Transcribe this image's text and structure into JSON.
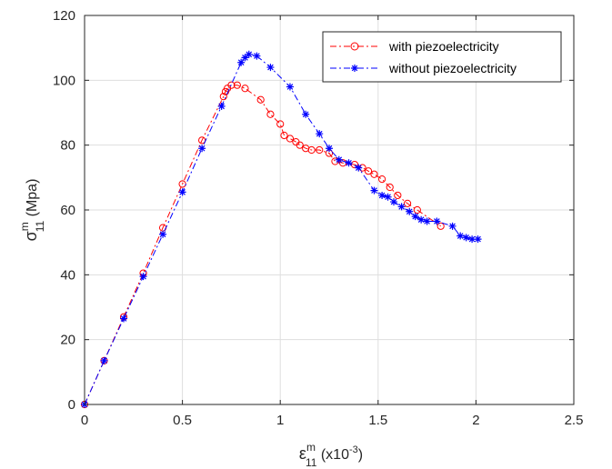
{
  "chart_data": {
    "type": "line",
    "xlabel": {
      "symbol": "ε",
      "sup": "m",
      "sub": "11",
      "unit_prefix": " (x10",
      "unit_exp": "-3",
      "unit_suffix": ")"
    },
    "ylabel": {
      "symbol": "σ",
      "sup": "m",
      "sub": "11",
      "unit": " (Mpa)"
    },
    "xlim": [
      0,
      2.5
    ],
    "ylim": [
      0,
      120
    ],
    "xticks": [
      "0",
      "0.5",
      "1",
      "1.5",
      "2",
      "2.5"
    ],
    "yticks": [
      "0",
      "20",
      "40",
      "60",
      "80",
      "100",
      "120"
    ],
    "grid": true,
    "legend_position": "top-right",
    "series": [
      {
        "name": "with piezoelectricity",
        "color": "#ff0000",
        "marker": "circle",
        "line_style": "dash-dot",
        "points": [
          [
            0,
            0
          ],
          [
            0.1,
            13.5
          ],
          [
            0.2,
            27
          ],
          [
            0.3,
            40.5
          ],
          [
            0.4,
            54.5
          ],
          [
            0.5,
            68
          ],
          [
            0.6,
            81.5
          ],
          [
            0.71,
            95
          ],
          [
            0.72,
            96.5
          ],
          [
            0.73,
            97.5
          ],
          [
            0.75,
            98.5
          ],
          [
            0.78,
            98.5
          ],
          [
            0.82,
            97.5
          ],
          [
            0.9,
            94
          ],
          [
            0.95,
            89.5
          ],
          [
            1.0,
            86.5
          ],
          [
            1.02,
            83
          ],
          [
            1.05,
            82
          ],
          [
            1.08,
            81
          ],
          [
            1.1,
            80
          ],
          [
            1.13,
            79
          ],
          [
            1.16,
            78.5
          ],
          [
            1.2,
            78.5
          ],
          [
            1.25,
            77.5
          ],
          [
            1.28,
            75
          ],
          [
            1.32,
            74.5
          ],
          [
            1.38,
            74
          ],
          [
            1.42,
            73
          ],
          [
            1.45,
            72
          ],
          [
            1.48,
            71
          ],
          [
            1.52,
            69.5
          ],
          [
            1.56,
            67
          ],
          [
            1.6,
            64.5
          ],
          [
            1.65,
            62
          ],
          [
            1.7,
            60
          ],
          [
            1.82,
            55
          ]
        ]
      },
      {
        "name": "without piezoelectricity",
        "color": "#0000ff",
        "marker": "star",
        "line_style": "dash-dot",
        "points": [
          [
            0,
            0
          ],
          [
            0.1,
            13.5
          ],
          [
            0.2,
            26.5
          ],
          [
            0.3,
            39.5
          ],
          [
            0.4,
            52.5
          ],
          [
            0.5,
            65.5
          ],
          [
            0.6,
            79
          ],
          [
            0.7,
            92
          ],
          [
            0.8,
            105.5
          ],
          [
            0.82,
            107
          ],
          [
            0.84,
            108
          ],
          [
            0.88,
            107.5
          ],
          [
            0.95,
            104
          ],
          [
            1.05,
            98
          ],
          [
            1.13,
            89.5
          ],
          [
            1.2,
            83.5
          ],
          [
            1.25,
            79
          ],
          [
            1.3,
            75.5
          ],
          [
            1.35,
            74.5
          ],
          [
            1.4,
            73
          ],
          [
            1.48,
            66
          ],
          [
            1.52,
            64.5
          ],
          [
            1.55,
            64
          ],
          [
            1.58,
            62.5
          ],
          [
            1.62,
            61
          ],
          [
            1.66,
            59.5
          ],
          [
            1.69,
            58
          ],
          [
            1.72,
            57
          ],
          [
            1.75,
            56.5
          ],
          [
            1.8,
            56.5
          ],
          [
            1.88,
            55
          ],
          [
            1.92,
            52
          ],
          [
            1.95,
            51.5
          ],
          [
            1.98,
            51
          ],
          [
            2.01,
            51
          ]
        ]
      }
    ]
  }
}
